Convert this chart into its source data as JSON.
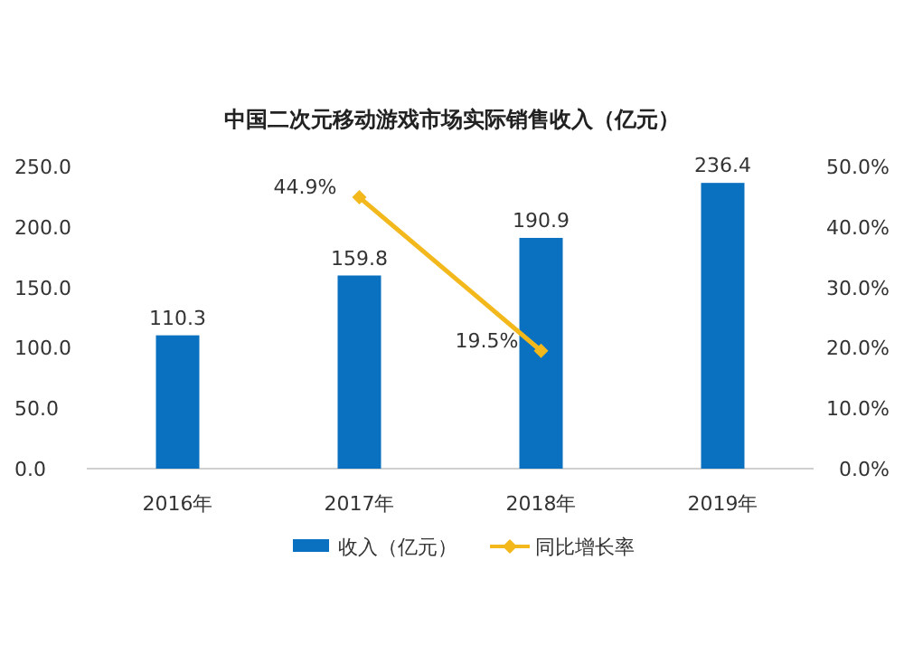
{
  "chart_data": {
    "type": "bar",
    "title": "中国二次元移动游戏市场实际销售收入（亿元）",
    "categories": [
      "2016年",
      "2017年",
      "2018年",
      "2019年"
    ],
    "series": [
      {
        "name": "收入（亿元）",
        "color": "#0a70c0",
        "values": [
          110.3,
          159.8,
          190.9,
          236.4
        ],
        "value_labels": [
          "110.3",
          "159.8",
          "190.9",
          "236.4"
        ]
      },
      {
        "name": "同比增长率",
        "type": "line",
        "axis": "y2",
        "color": "#f2b81c",
        "values": [
          null,
          44.9,
          19.5,
          null
        ],
        "value_labels": [
          null,
          "44.9%",
          "19.5%",
          null
        ]
      }
    ],
    "ylim": [
      0,
      250
    ],
    "yticks": [
      {
        "value": 0,
        "label": "0.0"
      },
      {
        "value": 50,
        "label": "50.0"
      },
      {
        "value": 100,
        "label": "100.0"
      },
      {
        "value": 150,
        "label": "150.0"
      },
      {
        "value": 200,
        "label": "200.0"
      },
      {
        "value": 250,
        "label": "250.0"
      }
    ],
    "y2lim": [
      0,
      50
    ],
    "y2ticks": [
      {
        "value": 0,
        "label": "0.0%"
      },
      {
        "value": 10,
        "label": "10.0%"
      },
      {
        "value": 20,
        "label": "20.0%"
      },
      {
        "value": 30,
        "label": "30.0%"
      },
      {
        "value": 40,
        "label": "40.0%"
      },
      {
        "value": 50,
        "label": "50.0%"
      }
    ],
    "marker": "diamond",
    "legend": "bottom"
  }
}
